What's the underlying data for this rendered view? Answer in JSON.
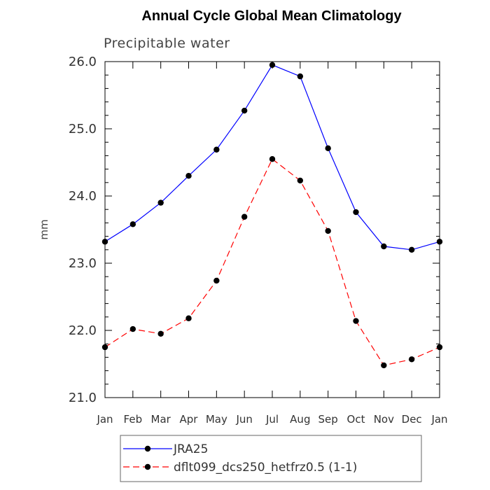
{
  "chart_data": {
    "type": "line",
    "title": "Annual Cycle Global Mean Climatology",
    "subtitle": "Precipitable water",
    "xlabel": "",
    "ylabel": "mm",
    "categories": [
      "Jan",
      "Feb",
      "Mar",
      "Apr",
      "May",
      "Jun",
      "Jul",
      "Aug",
      "Sep",
      "Oct",
      "Nov",
      "Dec",
      "Jan"
    ],
    "ylim": [
      21.0,
      26.0
    ],
    "yticks": [
      "21.0",
      "22.0",
      "23.0",
      "24.0",
      "25.0",
      "26.0"
    ],
    "grid": false,
    "legend_position": "bottom",
    "series": [
      {
        "name": "JRA25",
        "color": "#0000ff",
        "dash": "solid",
        "marker": "circle",
        "values": [
          23.32,
          23.58,
          23.9,
          24.3,
          24.69,
          25.27,
          25.95,
          25.78,
          24.71,
          23.76,
          23.25,
          23.2,
          23.32
        ]
      },
      {
        "name": "dflt099_dcs250_hetfrz0.5 (1-1)",
        "color": "#ff0000",
        "dash": "dashed",
        "marker": "circle",
        "values": [
          21.75,
          22.02,
          21.95,
          22.18,
          22.74,
          23.69,
          24.55,
          24.23,
          23.48,
          22.14,
          21.48,
          21.57,
          21.75
        ]
      }
    ]
  }
}
